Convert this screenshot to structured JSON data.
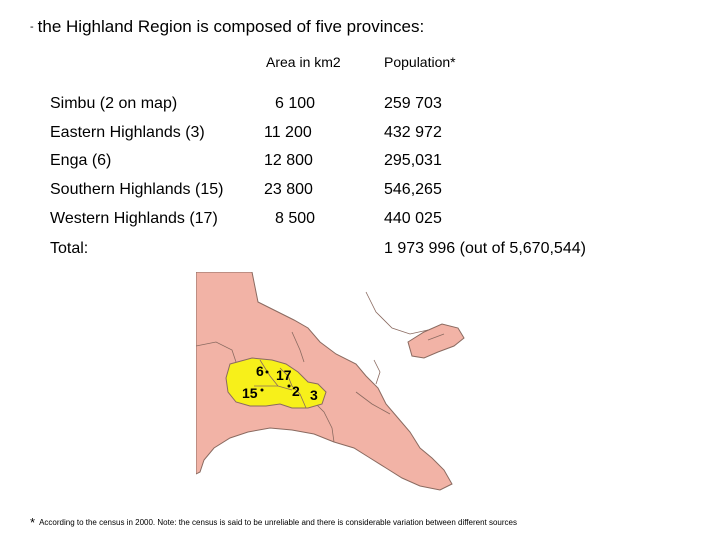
{
  "heading": {
    "dash": "-",
    "text": "the Highland Region is composed of  five provinces:"
  },
  "columns": {
    "area": "Area in km2",
    "population": "Population*"
  },
  "rows": [
    {
      "name": "Simbu (2 on map)",
      "area": "6 100",
      "population": "259 703"
    },
    {
      "name": "Eastern Highlands (3)",
      "area": "11 200",
      "population": "432 972"
    },
    {
      "name": "Enga (6)",
      "area": "12 800",
      "population": "295,031"
    },
    {
      "name": "Southern Highlands (15)",
      "area": "23 800",
      "population": "546,265"
    },
    {
      "name": "Western Highlands (17)",
      "area": "8 500",
      "population": "440 025"
    }
  ],
  "total": {
    "label": "Total:",
    "population": "1 973 996 (out of  5,670,544)"
  },
  "map": {
    "labels": {
      "enga": "6",
      "western": "17",
      "southern": "15",
      "simbu": "2",
      "eastern": "3"
    },
    "colors": {
      "land": "#f2b3a6",
      "highlands": "#f7f01a",
      "border": "#8a6a60"
    }
  },
  "footnote": {
    "star": "*",
    "text": "According to the census in 2000. Note: the census is said to be unreliable and there is considerable variation between different sources"
  }
}
